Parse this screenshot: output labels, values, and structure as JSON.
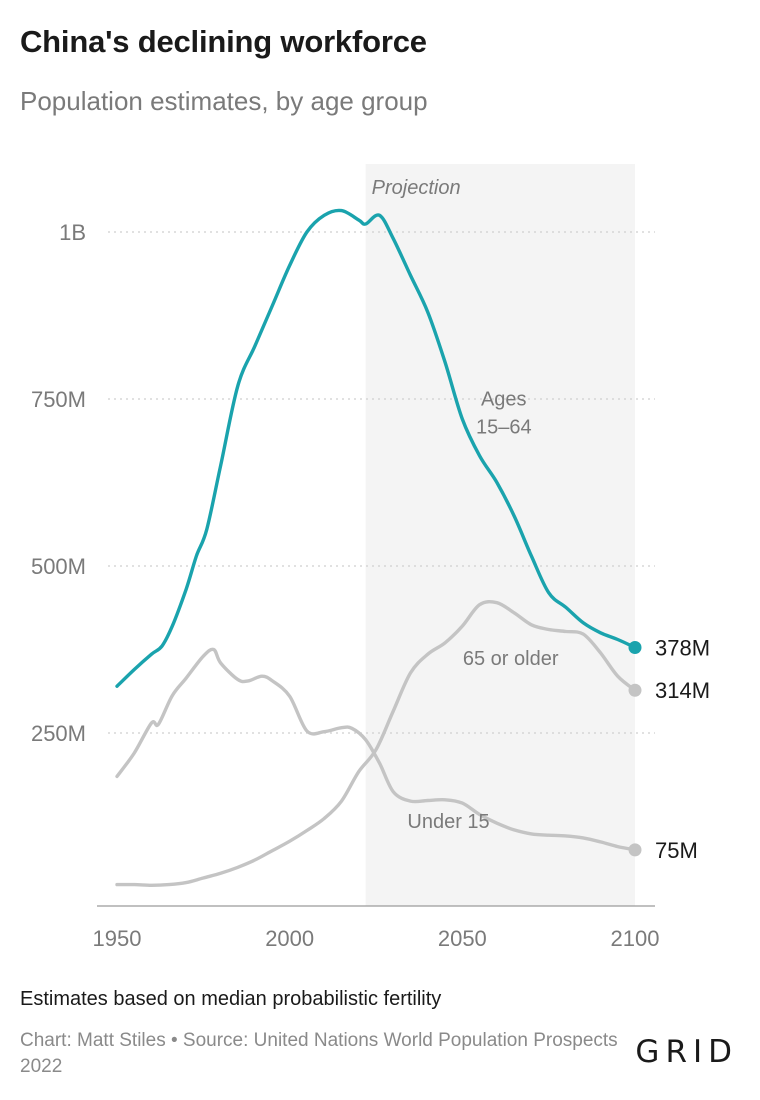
{
  "header": {
    "title": "China's declining workforce",
    "subtitle": "Population estimates, by age group"
  },
  "footer": {
    "note": "Estimates based on median probabilistic fertility",
    "source": "Chart: Matt Stiles • Source: United Nations World Population Prospects 2022",
    "logo": "GRID"
  },
  "chart_data": {
    "type": "line",
    "title": "China's declining workforce",
    "subtitle": "Population estimates, by age group",
    "xlim": [
      1950,
      2100
    ],
    "ylim": [
      0,
      1000000000
    ],
    "x_ticks": [
      {
        "value": 1950,
        "label": "1950"
      },
      {
        "value": 2000,
        "label": "2000"
      },
      {
        "value": 2050,
        "label": "2050"
      },
      {
        "value": 2100,
        "label": "2100"
      }
    ],
    "y_ticks": [
      {
        "value": 250000000,
        "label": "250M"
      },
      {
        "value": 500000000,
        "label": "500M"
      },
      {
        "value": 750000000,
        "label": "750M"
      },
      {
        "value": 1000000000,
        "label": "1B"
      }
    ],
    "grid": "horizontal dotted",
    "projection": {
      "start": 2022,
      "end": 2100,
      "label": "Projection",
      "color": "#f4f4f4"
    },
    "series": [
      {
        "name": "Ages 15–64",
        "label_lines": [
          "Ages",
          "15–64"
        ],
        "label_at": [
          2062,
          740000000
        ],
        "color": "#1aa3ad",
        "end_label": "378M",
        "points": [
          [
            1950,
            320000000
          ],
          [
            1955,
            345000000
          ],
          [
            1960,
            368000000
          ],
          [
            1963,
            380000000
          ],
          [
            1966,
            410000000
          ],
          [
            1970,
            465000000
          ],
          [
            1973,
            515000000
          ],
          [
            1976,
            555000000
          ],
          [
            1980,
            650000000
          ],
          [
            1985,
            770000000
          ],
          [
            1990,
            830000000
          ],
          [
            1995,
            890000000
          ],
          [
            2000,
            950000000
          ],
          [
            2005,
            1000000000
          ],
          [
            2010,
            1025000000
          ],
          [
            2015,
            1032000000
          ],
          [
            2020,
            1018000000
          ],
          [
            2022,
            1012000000
          ],
          [
            2026,
            1025000000
          ],
          [
            2030,
            990000000
          ],
          [
            2035,
            935000000
          ],
          [
            2040,
            880000000
          ],
          [
            2045,
            805000000
          ],
          [
            2050,
            720000000
          ],
          [
            2055,
            665000000
          ],
          [
            2060,
            625000000
          ],
          [
            2065,
            575000000
          ],
          [
            2070,
            515000000
          ],
          [
            2075,
            460000000
          ],
          [
            2080,
            438000000
          ],
          [
            2085,
            415000000
          ],
          [
            2090,
            400000000
          ],
          [
            2095,
            390000000
          ],
          [
            2100,
            378000000
          ]
        ]
      },
      {
        "name": "65 or older",
        "label_lines": [
          "65 or older"
        ],
        "label_at": [
          2064,
          352000000
        ],
        "color": "#c4c4c4",
        "end_label": "314M",
        "points": [
          [
            1950,
            23000000
          ],
          [
            1955,
            23000000
          ],
          [
            1960,
            22000000
          ],
          [
            1965,
            23000000
          ],
          [
            1970,
            26000000
          ],
          [
            1975,
            33000000
          ],
          [
            1980,
            40000000
          ],
          [
            1985,
            49000000
          ],
          [
            1990,
            60000000
          ],
          [
            1995,
            74000000
          ],
          [
            2000,
            88000000
          ],
          [
            2005,
            104000000
          ],
          [
            2010,
            122000000
          ],
          [
            2015,
            148000000
          ],
          [
            2020,
            192000000
          ],
          [
            2025,
            225000000
          ],
          [
            2030,
            283000000
          ],
          [
            2035,
            340000000
          ],
          [
            2040,
            368000000
          ],
          [
            2045,
            385000000
          ],
          [
            2050,
            410000000
          ],
          [
            2055,
            442000000
          ],
          [
            2060,
            445000000
          ],
          [
            2065,
            430000000
          ],
          [
            2070,
            412000000
          ],
          [
            2075,
            405000000
          ],
          [
            2080,
            402000000
          ],
          [
            2085,
            398000000
          ],
          [
            2090,
            370000000
          ],
          [
            2095,
            335000000
          ],
          [
            2100,
            314000000
          ]
        ]
      },
      {
        "name": "Under 15",
        "label_lines": [
          "Under 15"
        ],
        "label_at": [
          2046,
          108000000
        ],
        "color": "#c4c4c4",
        "end_label": "75M",
        "points": [
          [
            1950,
            185000000
          ],
          [
            1955,
            220000000
          ],
          [
            1960,
            265000000
          ],
          [
            1962,
            263000000
          ],
          [
            1966,
            306000000
          ],
          [
            1970,
            332000000
          ],
          [
            1975,
            365000000
          ],
          [
            1978,
            375000000
          ],
          [
            1980,
            355000000
          ],
          [
            1985,
            330000000
          ],
          [
            1988,
            328000000
          ],
          [
            1992,
            335000000
          ],
          [
            1995,
            328000000
          ],
          [
            2000,
            305000000
          ],
          [
            2005,
            253000000
          ],
          [
            2010,
            252000000
          ],
          [
            2015,
            258000000
          ],
          [
            2018,
            257000000
          ],
          [
            2022,
            240000000
          ],
          [
            2026,
            205000000
          ],
          [
            2030,
            162000000
          ],
          [
            2035,
            148000000
          ],
          [
            2040,
            149000000
          ],
          [
            2045,
            150000000
          ],
          [
            2050,
            145000000
          ],
          [
            2055,
            128000000
          ],
          [
            2060,
            115000000
          ],
          [
            2065,
            105000000
          ],
          [
            2070,
            99000000
          ],
          [
            2075,
            97000000
          ],
          [
            2080,
            96000000
          ],
          [
            2085,
            93000000
          ],
          [
            2090,
            87000000
          ],
          [
            2095,
            80000000
          ],
          [
            2100,
            75000000
          ]
        ]
      }
    ]
  }
}
